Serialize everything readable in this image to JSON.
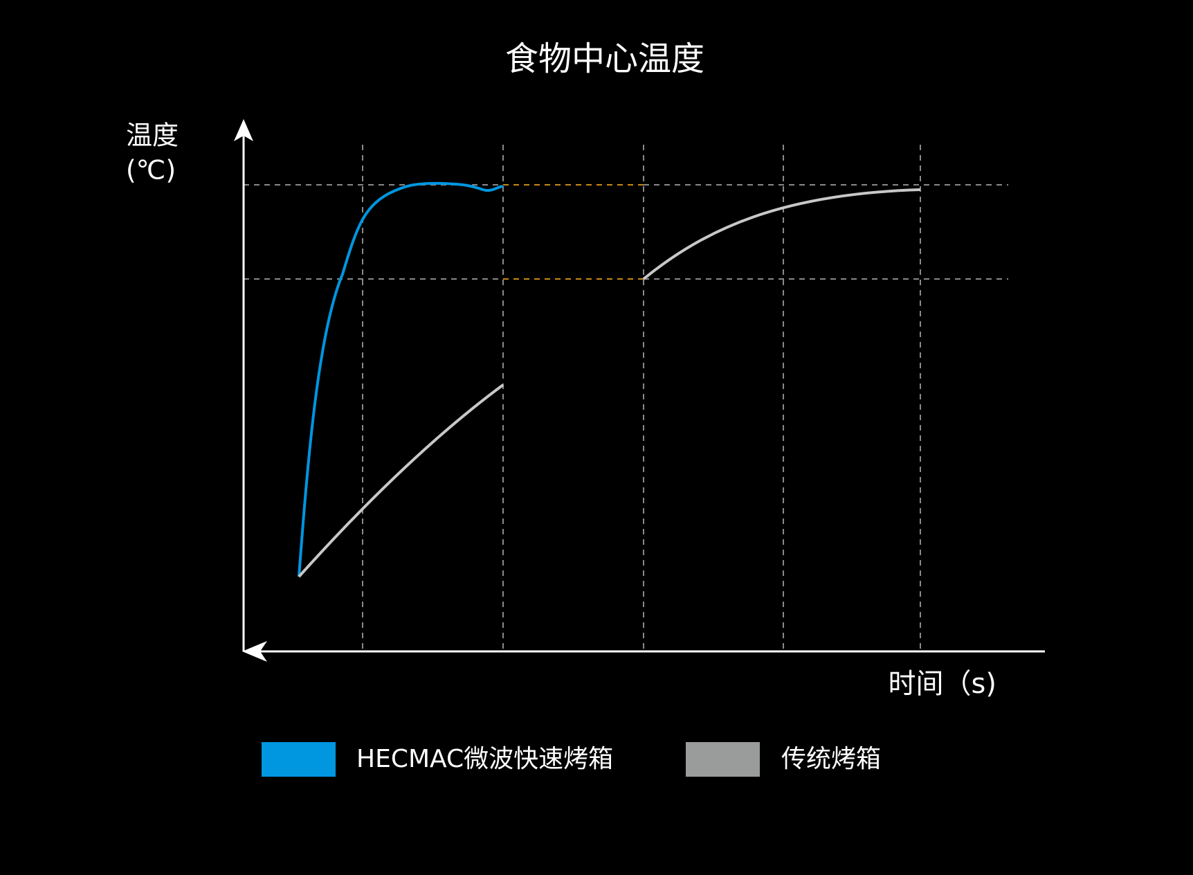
{
  "title": "食物中心温度",
  "y_axis_label": [
    "温度",
    "(℃)"
  ],
  "x_axis_label": "时间（s)",
  "legend": [
    {
      "name": "HECMAC微波快速烤箱",
      "color": "#0096e0"
    },
    {
      "name": "传统烤箱",
      "color": "#9a9b9b"
    }
  ]
}
